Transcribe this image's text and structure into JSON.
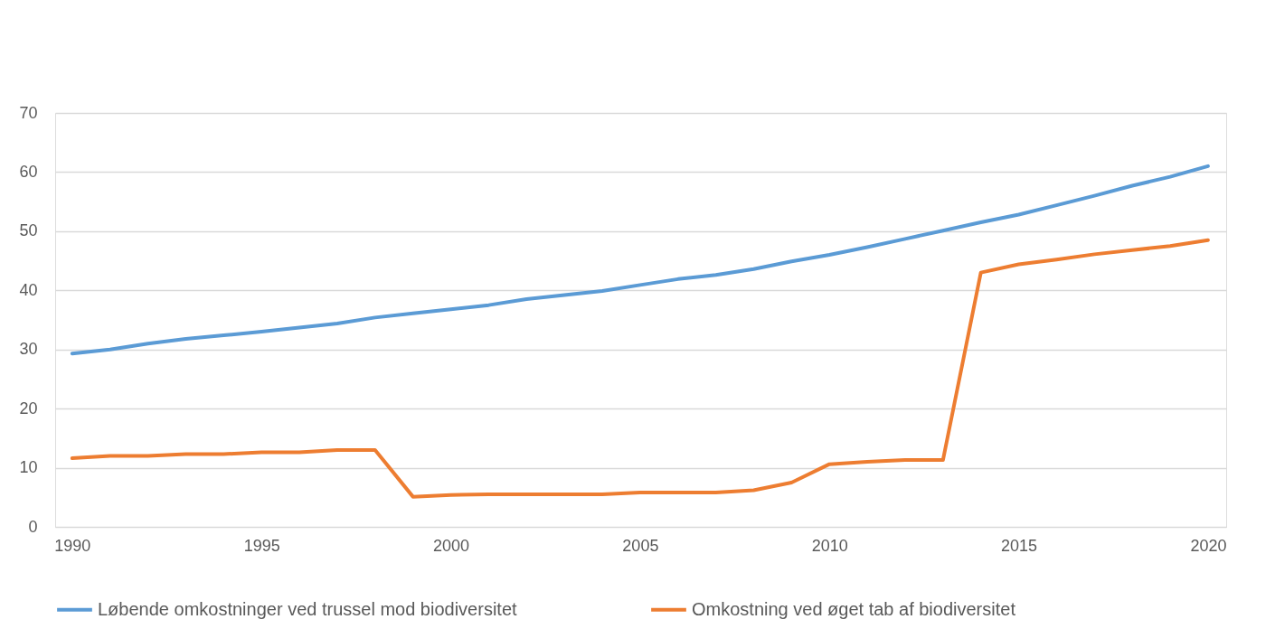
{
  "chart_data": {
    "type": "line",
    "x": [
      1990,
      1991,
      1992,
      1993,
      1994,
      1995,
      1996,
      1997,
      1998,
      1999,
      2000,
      2001,
      2002,
      2003,
      2004,
      2005,
      2006,
      2007,
      2008,
      2009,
      2010,
      2011,
      2012,
      2013,
      2014,
      2015,
      2016,
      2017,
      2018,
      2019,
      2020
    ],
    "series": [
      {
        "name": "Løbende omkostninger ved trussel mod biodiversitet",
        "color": "#5b9bd5",
        "values": [
          29.3,
          30,
          31,
          31.8,
          32.4,
          33,
          33.7,
          34.4,
          35.4,
          36.1,
          36.8,
          37.5,
          38.5,
          39.2,
          39.9,
          40.9,
          41.9,
          42.6,
          43.6,
          44.9,
          46,
          47.3,
          48.7,
          50.1,
          51.5,
          52.8,
          54.4,
          56,
          57.7,
          59.2,
          61
        ]
      },
      {
        "name": "Omkostning ved øget tab af biodiversitet",
        "color": "#ed7d31",
        "values": [
          11.6,
          12,
          12,
          12.3,
          12.3,
          12.6,
          12.6,
          13,
          13,
          5.1,
          5.4,
          5.5,
          5.5,
          5.5,
          5.5,
          5.8,
          5.8,
          5.8,
          6.2,
          7.5,
          10.6,
          11,
          11.3,
          11.3,
          43,
          44.4,
          45.2,
          46.1,
          46.8,
          47.5,
          48.5
        ]
      }
    ],
    "xlim": [
      1989.55,
      2020.48
    ],
    "xticks": [
      1990,
      1995,
      2000,
      2005,
      2010,
      2015,
      2020
    ],
    "ylim": [
      0,
      70
    ],
    "yticks": [
      0,
      10,
      20,
      30,
      40,
      50,
      60,
      70
    ],
    "grid": "y",
    "legend": "bottom",
    "marker": "none",
    "line_style": "solid"
  }
}
